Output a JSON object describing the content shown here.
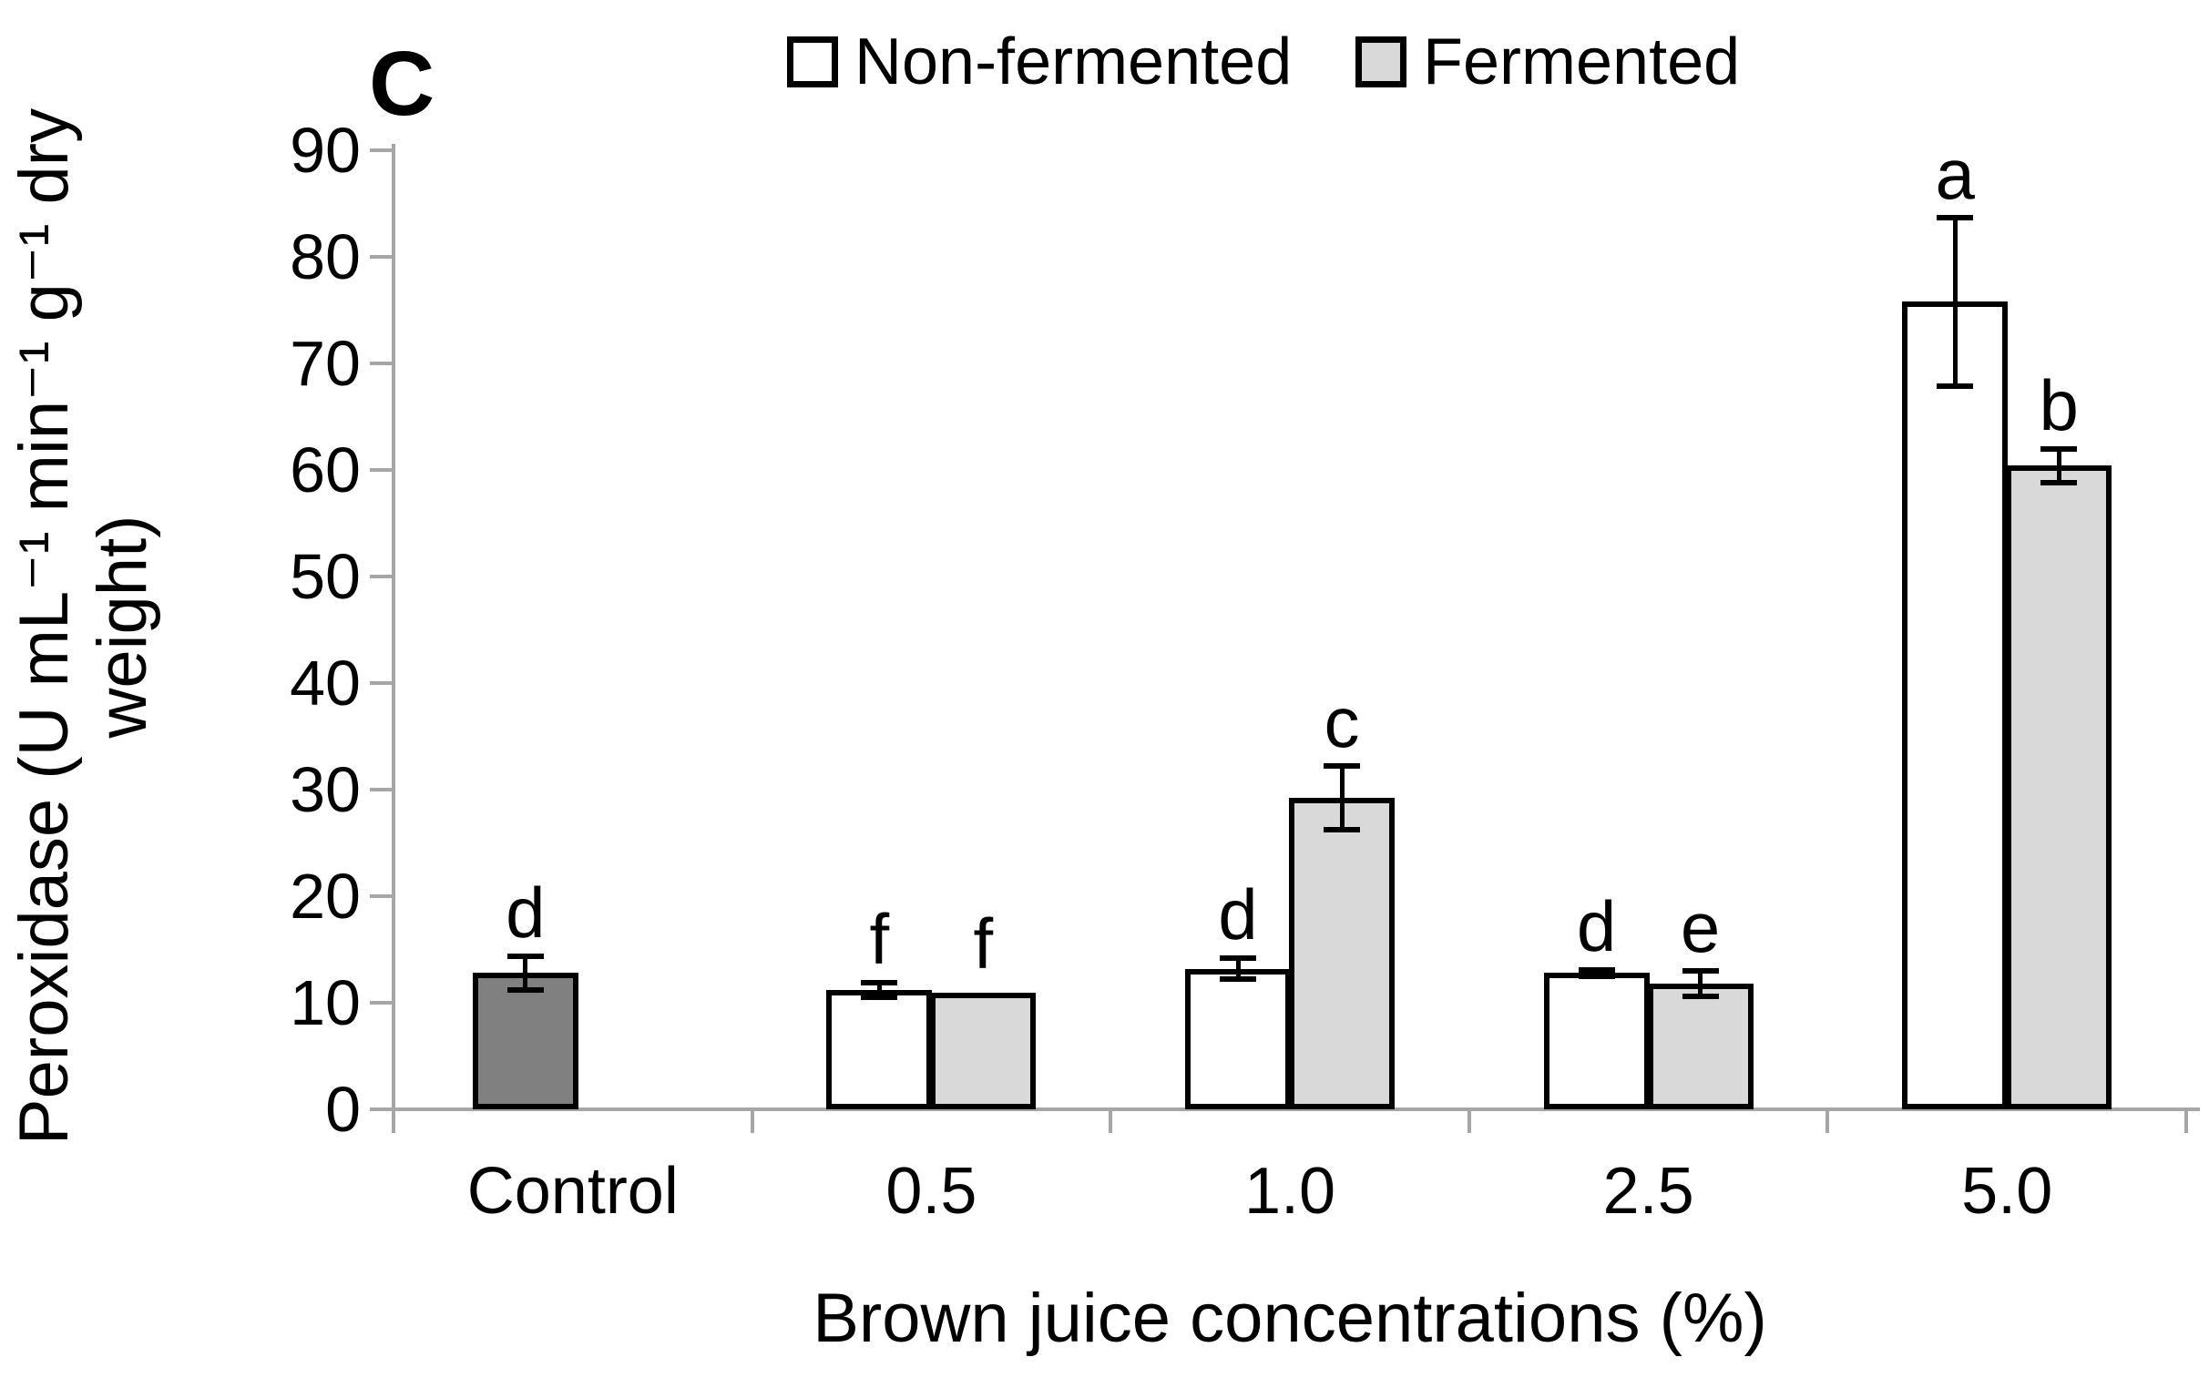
{
  "panel_label": "C",
  "legend": {
    "items": [
      {
        "label": "Non-fermented",
        "color": "#ffffff"
      },
      {
        "label": "Fermented",
        "color": "#d9d9d9"
      }
    ]
  },
  "axes": {
    "y_title": "Peroxidase (U mL⁻¹ min⁻¹ g⁻¹ dry\nweight)",
    "x_title": "Brown juice concentrations (%)",
    "y_ticks": [
      0,
      10,
      20,
      30,
      40,
      50,
      60,
      70,
      80,
      90
    ]
  },
  "colors": {
    "nonfermented": "#ffffff",
    "fermented": "#d9d9d9",
    "control": "#808080",
    "axis": "#a6a6a6",
    "error_bar": "#000000",
    "text": "#000000"
  },
  "chart_data": {
    "type": "bar",
    "title": "",
    "xlabel": "Brown juice concentrations (%)",
    "ylabel": "Peroxidase (U mL⁻¹ min⁻¹ g⁻¹ dry weight)",
    "ylim": [
      0,
      90
    ],
    "grid": false,
    "legend_position": "top",
    "categories": [
      "Control",
      "0.5",
      "1.0",
      "2.5",
      "5.0"
    ],
    "series": [
      {
        "name": "Control",
        "fill": "#808080",
        "values": [
          12.8,
          null,
          null,
          null,
          null
        ],
        "errors": [
          1.6,
          null,
          null,
          null,
          null
        ],
        "letters": [
          "d",
          null,
          null,
          null,
          null
        ]
      },
      {
        "name": "Non-fermented",
        "fill": "#ffffff",
        "values": [
          null,
          11.2,
          13.2,
          12.8,
          75.8
        ],
        "errors": [
          null,
          0.7,
          1.0,
          0.3,
          7.9
        ],
        "letters": [
          null,
          "f",
          "d",
          "d",
          "a"
        ]
      },
      {
        "name": "Fermented",
        "fill": "#d9d9d9",
        "values": [
          null,
          10.9,
          29.2,
          11.8,
          60.4
        ],
        "errors": [
          null,
          0,
          3.0,
          1.2,
          1.6
        ],
        "letters": [
          null,
          "f",
          "c",
          "e",
          "b"
        ]
      }
    ]
  }
}
